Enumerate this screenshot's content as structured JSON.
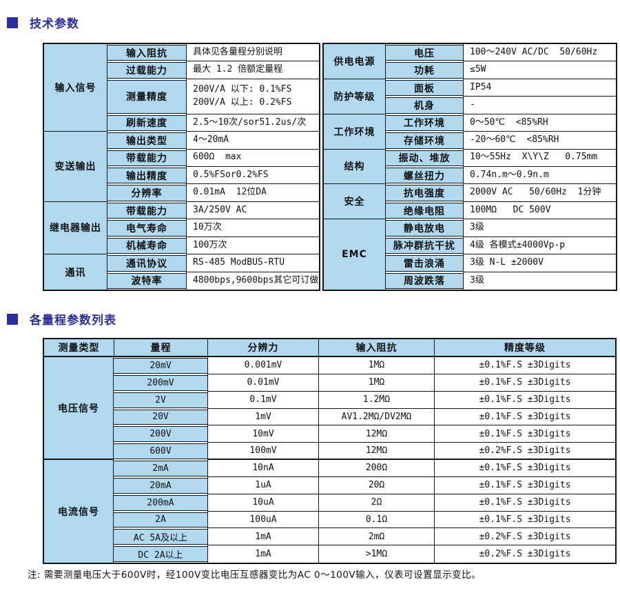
{
  "colors": {
    "cell_blue": "#B0D8EE",
    "title_navy": "#2B2F9D",
    "border": "#141414",
    "page_bg": "#ffffff"
  },
  "sections": [
    {
      "title": "技术参数"
    },
    {
      "title": "各量程参数列表"
    }
  ],
  "spec_table": {
    "left": [
      {
        "category": "输入信号",
        "rows": [
          {
            "label": "输入阻抗",
            "value": "具体见各量程分别说明"
          },
          {
            "label": "过载能力",
            "value": "最大 1.2 倍额定量程"
          },
          {
            "label": "测量精度",
            "tall": true,
            "lines": [
              "200V/A 以下: 0.1%FS",
              "200V/A 以上: 0.2%FS"
            ]
          },
          {
            "label": "刷新速度",
            "value": "2.5～10次/sor51.2us/次"
          }
        ]
      },
      {
        "category": "变送输出",
        "rows": [
          {
            "label": "输出类型",
            "value": "4～20mA"
          },
          {
            "label": "带载能力",
            "value": "600Ω  max"
          },
          {
            "label": "输出精度",
            "value": "0.5%FSor0.2%FS"
          },
          {
            "label": "分辨率",
            "value": "0.01mA  12位DA"
          }
        ]
      },
      {
        "category": "继电器输出",
        "rows": [
          {
            "label": "带载能力",
            "value": "3A/250V AC"
          },
          {
            "label": "电气寿命",
            "value": "10万次"
          },
          {
            "label": "机械寿命",
            "value": "100万次"
          }
        ]
      },
      {
        "category": "通讯",
        "rows": [
          {
            "label": "通讯协议",
            "value": "RS-485 ModBUS-RTU"
          },
          {
            "label": "波特率",
            "value": "4800bps,9600bps其它可订做"
          }
        ]
      }
    ],
    "right": [
      {
        "category": "供电电源",
        "rows": [
          {
            "label": "电压",
            "value": "100～240V AC/DC  50/60Hz"
          },
          {
            "label": "功耗",
            "value": "≤5W"
          }
        ]
      },
      {
        "category": "防护等级",
        "rows": [
          {
            "label": "面板",
            "value": "IP54"
          },
          {
            "label": "机身",
            "value": "-"
          }
        ]
      },
      {
        "category": "工作环境",
        "rows": [
          {
            "label": "工作环境",
            "value": "0～50℃  <85%RH"
          },
          {
            "label": "存储环境",
            "value": "-20～60℃  <85%RH"
          }
        ]
      },
      {
        "category": "结构",
        "rows": [
          {
            "label": "振动、堆放",
            "value": "10～55Hz  X\\Y\\Z   0.75mm"
          },
          {
            "label": "螺丝扭力",
            "value": "0.74n.m～0.9n.m"
          }
        ]
      },
      {
        "category": "安全",
        "rows": [
          {
            "label": "抗电强度",
            "value": "2000V AC   50/60Hz  1分钟"
          },
          {
            "label": "绝缘电阻",
            "value": "100MΩ   DC 500V"
          }
        ]
      },
      {
        "category": "EMC",
        "rows": [
          {
            "label": "静电放电",
            "value": "3级"
          },
          {
            "label": "脉冲群抗干扰",
            "value": "4级 各模式±4000Vp-p"
          },
          {
            "label": "雷击浪涌",
            "value": "3级 N-L ±2000V"
          },
          {
            "label": "周波跌落",
            "value": "3级"
          }
        ]
      }
    ]
  },
  "range_table": {
    "headers": [
      "测量类型",
      "量程",
      "分辨力",
      "输入阻抗",
      "精度等级"
    ],
    "groups": [
      {
        "category": "电压信号",
        "rows": [
          {
            "range": "20mV",
            "resolution": "0.001mV",
            "impedance": "1MΩ",
            "accuracy": "±0.1%F.S ±3Digits"
          },
          {
            "range": "200mV",
            "resolution": "0.01mV",
            "impedance": "1MΩ",
            "accuracy": "±0.1%F.S ±3Digits"
          },
          {
            "range": "2V",
            "resolution": "0.1mV",
            "impedance": "1.2MΩ",
            "accuracy": "±0.1%F.S ±3Digits"
          },
          {
            "range": "20V",
            "resolution": "1mV",
            "impedance": "AV1.2MΩ/DV2MΩ",
            "accuracy": "±0.1%F.S ±3Digits"
          },
          {
            "range": "200V",
            "resolution": "10mV",
            "impedance": "12MΩ",
            "accuracy": "±0.1%F.S ±3Digits"
          },
          {
            "range": "600V",
            "resolution": "100mV",
            "impedance": "12MΩ",
            "accuracy": "±0.2%F.S ±3Digits"
          }
        ]
      },
      {
        "category": "电流信号",
        "rows": [
          {
            "range": "2mA",
            "resolution": "10nA",
            "impedance": "200Ω",
            "accuracy": "±0.1%F.S ±3Digits"
          },
          {
            "range": "20mA",
            "resolution": "1uA",
            "impedance": "20Ω",
            "accuracy": "±0.1%F.S ±3Digits"
          },
          {
            "range": "200mA",
            "resolution": "10uA",
            "impedance": "2Ω",
            "accuracy": "±0.1%F.S ±3Digits"
          },
          {
            "range": "2A",
            "resolution": "100uA",
            "impedance": "0.1Ω",
            "accuracy": "±0.1%F.S ±3Digits"
          },
          {
            "range": "AC 5A及以上",
            "resolution": "1mA",
            "impedance": "2mΩ",
            "accuracy": "±0.2%F.S ±3Digits"
          },
          {
            "range": "DC 2A以上",
            "resolution": "1mA",
            "impedance": ">1MΩ",
            "accuracy": "±0.2%F.S ±3Digits"
          }
        ]
      }
    ]
  },
  "note": "注: 需要测量电压大于600V时，经100V变比电压互感器变比为AC 0～100V输入，仪表可设置显示变比。"
}
